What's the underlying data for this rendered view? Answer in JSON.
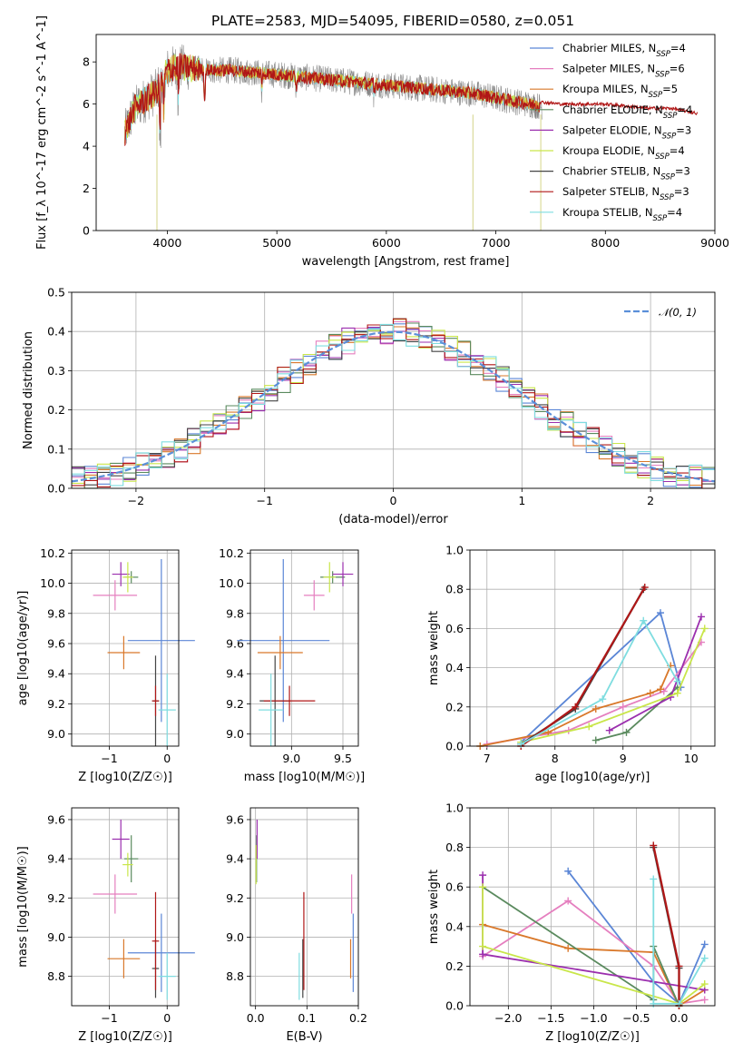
{
  "title": "PLATE=2583, MJD=54095, FIBERID=0580, z=0.051",
  "colors": {
    "Chabrier MILES": "#5b86d6",
    "Salpeter MILES": "#e57fbf",
    "Kroupa MILES": "#d9782a",
    "Chabrier ELODIE": "#5a8a5e",
    "Salpeter ELODIE": "#9b2fae",
    "Kroupa ELODIE": "#c9e64a",
    "Chabrier STELIB": "#444444",
    "Salpeter STELIB": "#b01717",
    "Kroupa STELIB": "#7fdde0",
    "spectrum": "#888888",
    "normal": "#5b8fd9"
  },
  "chart_data": [
    {
      "id": "spectrum",
      "type": "line",
      "title": "PLATE=2583, MJD=54095, FIBERID=0580, z=0.051",
      "xlabel": "wavelength [Angstrom, rest frame]",
      "ylabel": "Flux [f_λ 10^-17 erg cm^-2 s^-1 A^-1]",
      "xlim": [
        3350,
        9000
      ],
      "ylim": [
        0,
        9.3
      ],
      "xticks": [
        "4000",
        "5000",
        "6000",
        "7000",
        "8000",
        "9000"
      ],
      "yticks": [
        "0",
        "2",
        "4",
        "6",
        "8"
      ],
      "legend_placement": "right",
      "legend": [
        {
          "name": "Chabrier MILES",
          "nssp": "4"
        },
        {
          "name": "Salpeter MILES",
          "nssp": "6"
        },
        {
          "name": "Kroupa MILES",
          "nssp": "5"
        },
        {
          "name": "Chabrier ELODIE",
          "nssp": "4"
        },
        {
          "name": "Salpeter ELODIE",
          "nssp": "3"
        },
        {
          "name": "Kroupa ELODIE",
          "nssp": "4"
        },
        {
          "name": "Chabrier STELIB",
          "nssp": "3"
        },
        {
          "name": "Salpeter STELIB",
          "nssp": "3"
        },
        {
          "name": "Kroupa STELIB",
          "nssp": "4"
        }
      ],
      "continuum": {
        "x": [
          3610,
          3700,
          3800,
          3900,
          4000,
          4100,
          4200,
          4400,
          4600,
          4800,
          5000,
          5200,
          5400,
          5600,
          5800,
          6000,
          6200,
          6400,
          6600,
          6800,
          7000,
          7200,
          7400
        ],
        "y": [
          4.6,
          5.8,
          6.2,
          6.6,
          7.6,
          7.8,
          7.7,
          7.6,
          7.6,
          7.5,
          7.4,
          7.3,
          7.2,
          7.1,
          7.0,
          6.9,
          6.8,
          6.7,
          6.6,
          6.5,
          6.3,
          6.1,
          5.9
        ]
      },
      "model_end": {
        "x": [
          7400,
          7600,
          7800,
          8000,
          8200,
          8400,
          8600,
          8800,
          8850
        ],
        "y": [
          6.1,
          6.0,
          6.0,
          6.0,
          5.9,
          5.8,
          5.8,
          5.6,
          5.55
        ]
      }
    },
    {
      "id": "residuals",
      "type": "area",
      "xlabel": "(data-model)/error",
      "ylabel": "Normed distribution",
      "xlim": [
        -2.5,
        2.5
      ],
      "ylim": [
        0,
        0.5
      ],
      "xticks": [
        "−2",
        "−1",
        "0",
        "1",
        "2"
      ],
      "yticks": [
        "0.0",
        "0.1",
        "0.2",
        "0.3",
        "0.4",
        "0.5"
      ],
      "legend_label": "𝒩(0, 1)",
      "legend_placement": "top-right",
      "bin_width": 0.1
    },
    {
      "id": "age_vs_Z",
      "type": "scatter",
      "xlabel": "Z [log10(Z/Z☉)]",
      "ylabel": "age [log10(age/yr)]",
      "xlim": [
        -1.65,
        0.2
      ],
      "ylim": [
        8.92,
        10.22
      ],
      "xticks": [
        "−1",
        "0"
      ],
      "yticks": [
        "9.0",
        "9.2",
        "9.4",
        "9.6",
        "9.8",
        "10.0",
        "10.2"
      ],
      "points": [
        {
          "model": "Chabrier MILES",
          "x": -0.1,
          "y": 9.62,
          "xerr": 0.58,
          "yerr": 0.54
        },
        {
          "model": "Salpeter MILES",
          "x": -0.9,
          "y": 9.92,
          "xerr": 0.38,
          "yerr": 0.1
        },
        {
          "model": "Kroupa MILES",
          "x": -0.75,
          "y": 9.54,
          "xerr": 0.28,
          "yerr": 0.11
        },
        {
          "model": "Chabrier ELODIE",
          "x": -0.62,
          "y": 10.04,
          "xerr": 0.12,
          "yerr": 0.04
        },
        {
          "model": "Salpeter ELODIE",
          "x": -0.8,
          "y": 10.06,
          "xerr": 0.15,
          "yerr": 0.08
        },
        {
          "model": "Kroupa ELODIE",
          "x": -0.68,
          "y": 10.04,
          "xerr": 0.09,
          "yerr": 0.1
        },
        {
          "model": "Chabrier STELIB",
          "x": -0.2,
          "y": 9.22,
          "xerr": 0.06,
          "yerr": 0.3
        },
        {
          "model": "Salpeter STELIB",
          "x": -0.2,
          "y": 9.22,
          "xerr": 0.06,
          "yerr": 0.1
        },
        {
          "model": "Kroupa STELIB",
          "x": 0.0,
          "y": 9.16,
          "xerr": 0.15,
          "yerr": 0.24
        }
      ]
    },
    {
      "id": "age_vs_mass",
      "type": "scatter",
      "xlabel": "mass [log10(M/M☉)]",
      "xlim": [
        8.6,
        9.65
      ],
      "ylim": [
        8.92,
        10.22
      ],
      "xticks": [
        "9.0",
        "9.5"
      ],
      "yticks": [
        "9.0",
        "9.2",
        "9.4",
        "9.6",
        "9.8",
        "10.0",
        "10.2"
      ],
      "points": [
        {
          "model": "Chabrier MILES",
          "x": 8.92,
          "y": 9.62,
          "xerr": 0.45,
          "yerr": 0.54
        },
        {
          "model": "Salpeter MILES",
          "x": 9.22,
          "y": 9.92,
          "xerr": 0.1,
          "yerr": 0.1
        },
        {
          "model": "Kroupa MILES",
          "x": 8.89,
          "y": 9.54,
          "xerr": 0.22,
          "yerr": 0.11
        },
        {
          "model": "Chabrier ELODIE",
          "x": 9.4,
          "y": 10.04,
          "xerr": 0.12,
          "yerr": 0.04
        },
        {
          "model": "Salpeter ELODIE",
          "x": 9.5,
          "y": 10.06,
          "xerr": 0.1,
          "yerr": 0.08
        },
        {
          "model": "Kroupa ELODIE",
          "x": 9.37,
          "y": 10.04,
          "xerr": 0.06,
          "yerr": 0.1
        },
        {
          "model": "Chabrier STELIB",
          "x": 8.84,
          "y": 9.22,
          "xerr": 0.15,
          "yerr": 0.3
        },
        {
          "model": "Salpeter STELIB",
          "x": 8.98,
          "y": 9.22,
          "xerr": 0.25,
          "yerr": 0.1
        },
        {
          "model": "Kroupa STELIB",
          "x": 8.8,
          "y": 9.16,
          "xerr": 0.12,
          "yerr": 0.24
        }
      ]
    },
    {
      "id": "massweight_vs_age",
      "type": "line",
      "xlabel": "age [log10(age/yr)]",
      "ylabel": "mass weight",
      "xlim": [
        6.75,
        10.35
      ],
      "ylim": [
        0,
        1.0
      ],
      "xticks": [
        "7",
        "8",
        "9",
        "10"
      ],
      "yticks": [
        "0.0",
        "0.2",
        "0.4",
        "0.6",
        "0.8",
        "1.0"
      ],
      "series": [
        {
          "model": "Chabrier MILES",
          "x": [
            7.5,
            9.55,
            9.85
          ],
          "y": [
            0.02,
            0.68,
            0.3
          ]
        },
        {
          "model": "Salpeter MILES",
          "x": [
            7.0,
            8.2,
            9.0,
            9.6,
            10.15
          ],
          "y": [
            0.01,
            0.08,
            0.2,
            0.28,
            0.53
          ]
        },
        {
          "model": "Kroupa MILES",
          "x": [
            6.9,
            7.9,
            8.6,
            9.4,
            9.55,
            9.7
          ],
          "y": [
            0.0,
            0.07,
            0.19,
            0.27,
            0.29,
            0.41
          ]
        },
        {
          "model": "Chabrier ELODIE",
          "x": [
            8.6,
            9.05,
            9.8
          ],
          "y": [
            0.03,
            0.07,
            0.3
          ]
        },
        {
          "model": "Salpeter ELODIE",
          "x": [
            8.8,
            9.7,
            10.15
          ],
          "y": [
            0.08,
            0.25,
            0.66
          ]
        },
        {
          "model": "Kroupa ELODIE",
          "x": [
            7.5,
            8.5,
            9.8,
            10.2
          ],
          "y": [
            0.02,
            0.1,
            0.27,
            0.6
          ]
        },
        {
          "model": "Chabrier STELIB",
          "x": [
            7.5,
            8.3,
            9.3
          ],
          "y": [
            0.01,
            0.19,
            0.8
          ]
        },
        {
          "model": "Salpeter STELIB",
          "x": [
            7.5,
            8.3,
            9.32
          ],
          "y": [
            0.0,
            0.2,
            0.81
          ]
        },
        {
          "model": "Kroupa STELIB",
          "x": [
            7.5,
            8.7,
            9.3,
            9.8
          ],
          "y": [
            0.01,
            0.24,
            0.64,
            0.33
          ]
        }
      ]
    },
    {
      "id": "mass_vs_Z",
      "type": "scatter",
      "xlabel": "Z [log10(Z/Z☉)]",
      "ylabel": "mass [log10(M/M☉)]",
      "xlim": [
        -1.65,
        0.2
      ],
      "ylim": [
        8.65,
        9.66
      ],
      "xticks": [
        "−1",
        "0"
      ],
      "yticks": [
        "8.8",
        "9.0",
        "9.2",
        "9.4",
        "9.6"
      ],
      "points": [
        {
          "model": "Chabrier MILES",
          "x": -0.1,
          "y": 8.92,
          "xerr": 0.58,
          "yerr": 0.2
        },
        {
          "model": "Salpeter MILES",
          "x": -0.9,
          "y": 9.22,
          "xerr": 0.38,
          "yerr": 0.1
        },
        {
          "model": "Kroupa MILES",
          "x": -0.75,
          "y": 8.89,
          "xerr": 0.28,
          "yerr": 0.1
        },
        {
          "model": "Chabrier ELODIE",
          "x": -0.62,
          "y": 9.4,
          "xerr": 0.12,
          "yerr": 0.12
        },
        {
          "model": "Salpeter ELODIE",
          "x": -0.8,
          "y": 9.5,
          "xerr": 0.15,
          "yerr": 0.1
        },
        {
          "model": "Kroupa ELODIE",
          "x": -0.68,
          "y": 9.37,
          "xerr": 0.09,
          "yerr": 0.06
        },
        {
          "model": "Chabrier STELIB",
          "x": -0.2,
          "y": 8.84,
          "xerr": 0.06,
          "yerr": 0.15
        },
        {
          "model": "Salpeter STELIB",
          "x": -0.2,
          "y": 8.98,
          "xerr": 0.06,
          "yerr": 0.25
        },
        {
          "model": "Kroupa STELIB",
          "x": 0.0,
          "y": 8.8,
          "xerr": 0.15,
          "yerr": 0.12
        }
      ]
    },
    {
      "id": "mass_vs_ebv",
      "type": "scatter",
      "xlabel": "E(B-V)",
      "xlim": [
        -0.01,
        0.2
      ],
      "ylim": [
        8.65,
        9.66
      ],
      "xticks": [
        "0.0",
        "0.1",
        "0.2"
      ],
      "yticks": [
        "8.8",
        "9.0",
        "9.2",
        "9.4",
        "9.6"
      ],
      "points": [
        {
          "model": "Chabrier MILES",
          "x": 0.19,
          "y": 8.92,
          "yerr": 0.2
        },
        {
          "model": "Salpeter MILES",
          "x": 0.187,
          "y": 9.22,
          "yerr": 0.1
        },
        {
          "model": "Kroupa MILES",
          "x": 0.185,
          "y": 8.89,
          "yerr": 0.1
        },
        {
          "model": "Chabrier ELODIE",
          "x": 0.002,
          "y": 9.4,
          "yerr": 0.12
        },
        {
          "model": "Salpeter ELODIE",
          "x": 0.003,
          "y": 9.5,
          "yerr": 0.1
        },
        {
          "model": "Kroupa ELODIE",
          "x": 0.001,
          "y": 9.37,
          "yerr": 0.1
        },
        {
          "model": "Chabrier STELIB",
          "x": 0.092,
          "y": 8.84,
          "yerr": 0.15
        },
        {
          "model": "Salpeter STELIB",
          "x": 0.094,
          "y": 8.98,
          "yerr": 0.25
        },
        {
          "model": "Kroupa STELIB",
          "x": 0.085,
          "y": 8.8,
          "yerr": 0.12
        }
      ]
    },
    {
      "id": "massweight_vs_Z",
      "type": "line",
      "xlabel": "Z [log10(Z/Z☉)]",
      "ylabel": "mass weight",
      "xlim": [
        -2.45,
        0.42
      ],
      "ylim": [
        0,
        1.0
      ],
      "xticks": [
        "−2.0",
        "−1.5",
        "−1.0",
        "−0.5",
        "0.0"
      ],
      "yticks": [
        "0.0",
        "0.2",
        "0.4",
        "0.6",
        "0.8",
        "1.0"
      ],
      "series": [
        {
          "model": "Chabrier MILES",
          "x": [
            -1.3,
            -0.3,
            0.0,
            0.3
          ],
          "y": [
            0.68,
            0.12,
            0.01,
            0.31
          ]
        },
        {
          "model": "Salpeter MILES",
          "x": [
            -2.3,
            -1.3,
            -0.3,
            0.0,
            0.3
          ],
          "y": [
            0.25,
            0.53,
            0.2,
            0.01,
            0.03
          ]
        },
        {
          "model": "Kroupa MILES",
          "x": [
            -2.3,
            -1.3,
            -0.3,
            0.0,
            0.3
          ],
          "y": [
            0.41,
            0.29,
            0.27,
            0.0,
            0.08
          ]
        },
        {
          "model": "Chabrier ELODIE",
          "x": [
            -2.3,
            -0.3,
            -0.3,
            0.0
          ],
          "y": [
            0.6,
            0.03,
            0.3,
            0.0
          ]
        },
        {
          "model": "Salpeter ELODIE",
          "x": [
            -2.3,
            -2.3,
            0.3
          ],
          "y": [
            0.66,
            0.26,
            0.08
          ]
        },
        {
          "model": "Kroupa ELODIE",
          "x": [
            -2.3,
            -2.3,
            0.0,
            0.3
          ],
          "y": [
            0.6,
            0.3,
            0.01,
            0.11
          ]
        },
        {
          "model": "Chabrier STELIB",
          "x": [
            -0.3,
            0.0,
            0.0
          ],
          "y": [
            0.8,
            0.19,
            0.01
          ]
        },
        {
          "model": "Salpeter STELIB",
          "x": [
            -0.3,
            0.0,
            0.0
          ],
          "y": [
            0.81,
            0.2,
            0.0
          ]
        },
        {
          "model": "Kroupa STELIB",
          "x": [
            -0.3,
            -0.3,
            0.0,
            0.3
          ],
          "y": [
            0.64,
            0.01,
            0.01,
            0.24
          ]
        }
      ]
    }
  ]
}
